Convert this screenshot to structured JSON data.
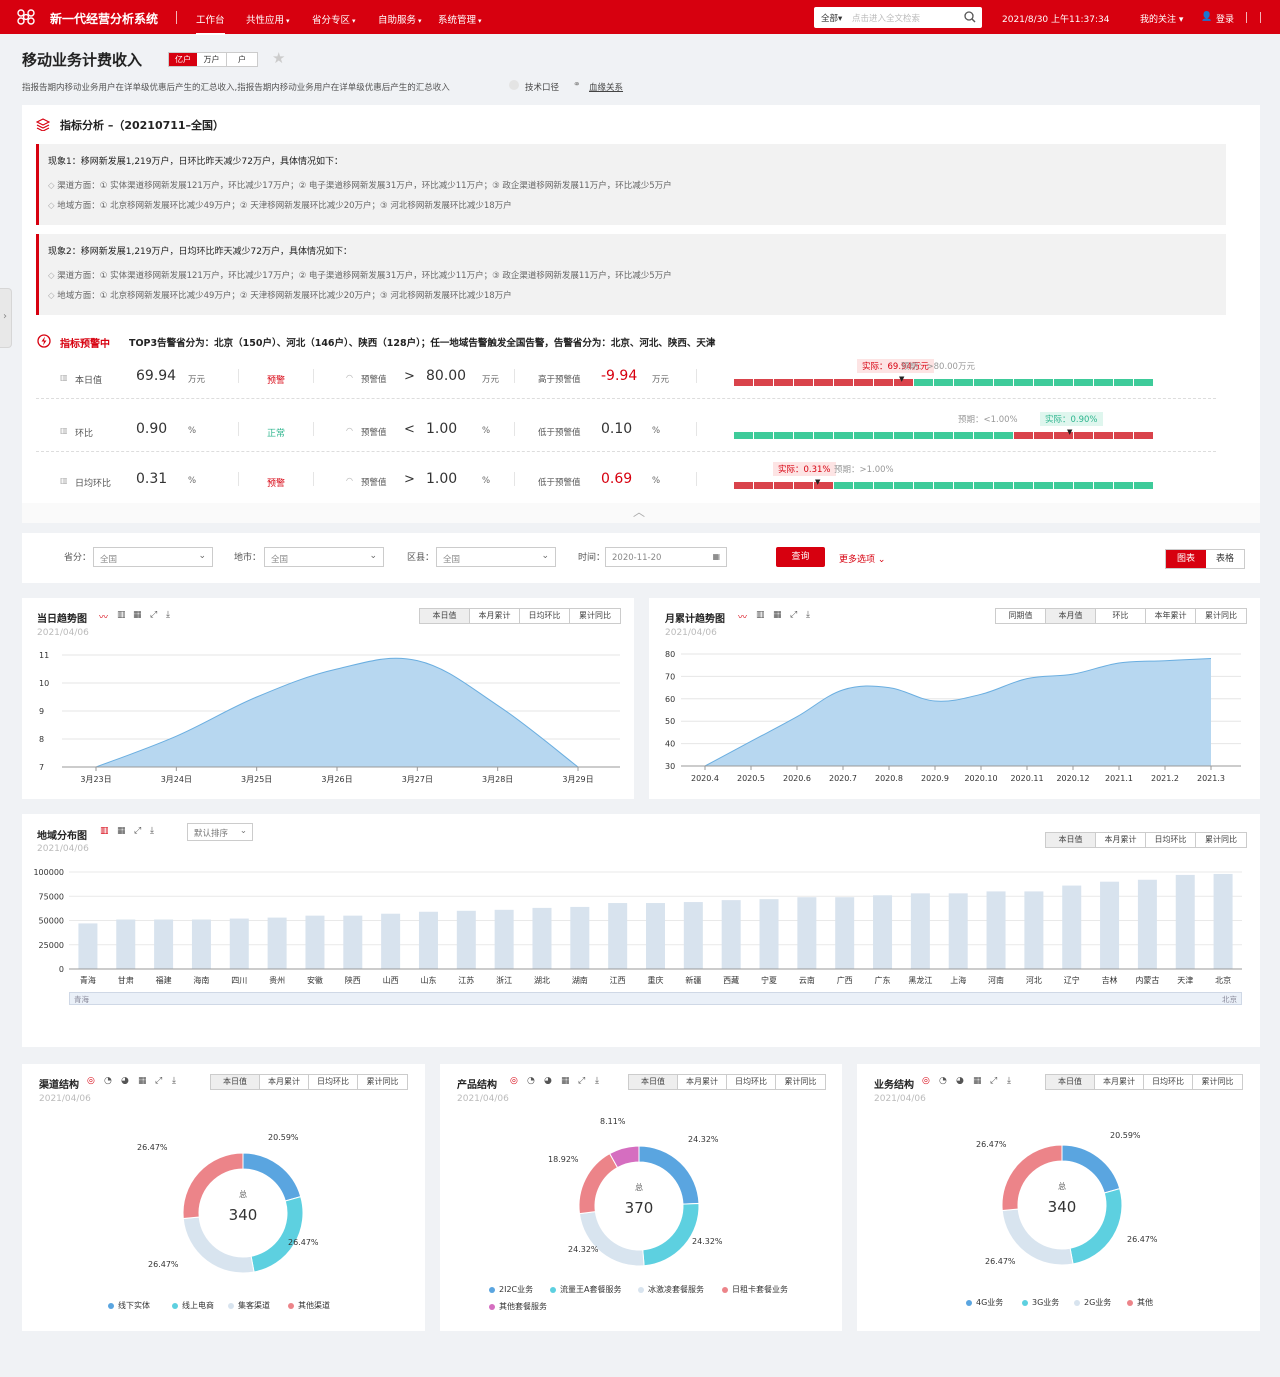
{
  "topbar": {
    "brand": "新一代经营分析系统",
    "nav": [
      {
        "label": "工作台",
        "active": true
      },
      {
        "label": "共性应用"
      },
      {
        "label": "省分专区"
      },
      {
        "label": "自助服务"
      },
      {
        "label": "系统管理"
      }
    ],
    "search_scope": "全部",
    "search_placeholder": "点击进入全文检索",
    "datetime": "2021/8/30 上午11:37:34",
    "my_follow": "我的关注",
    "login": "登录"
  },
  "page": {
    "title": "移动业务计费收入",
    "units": [
      "亿户",
      "万户",
      "户"
    ],
    "desc": "指报告期内移动业务用户在详单级优惠后产生的汇总收入,指报告期内移动业务用户在详单级优惠后产生的汇总收入",
    "tech": "技术口径",
    "lineage": "血缘关系"
  },
  "analysis": {
    "title": "指标分析 –（20210711–全国）",
    "phenomena": [
      {
        "title": "现象1：移网新发展1,219万户，日环比昨天减少72万户，具体情况如下：",
        "lines": [
          "渠道方面：① 实体渠道移网新发展121万户，环比减少17万户；② 电子渠道移网新发展31万户，环比减少11万户；③ 政企渠道移网新发展11万户，环比减少5万户",
          "地域方面：① 北京移网新发展环比减少49万户；② 天津移网新发展环比减少20万户；③ 河北移网新发展环比减少18万户"
        ]
      },
      {
        "title": "现象2：移网新发展1,219万户，日均环比昨天减少72万户，具体情况如下：",
        "lines": [
          "渠道方面：① 实体渠道移网新发展121万户，环比减少17万户；② 电子渠道移网新发展31万户，环比减少11万户；③ 政企渠道移网新发展11万户，环比减少5万户",
          "地域方面：① 北京移网新发展环比减少49万户；② 天津移网新发展环比减少20万户；③ 河北移网新发展环比减少18万户"
        ]
      }
    ],
    "warning": {
      "label": "指标预警中",
      "text": "TOP3告警省分为：北京（150户）、河北（146户）、陕西（128户）；任一地域告警触发全国告警，告警省分为：北京、河北、陕西、天津",
      "rows": [
        {
          "name": "本日值",
          "value": "69.94",
          "unit": "万元",
          "status": "预警",
          "status_color": "red",
          "th_label": "预警值",
          "op": ">",
          "th": "80.00",
          "th_unit": "万元",
          "diff_label": "高于预警值",
          "diff": "-9.94",
          "diff_unit": "万元",
          "diff_color": "red",
          "actual": "实际：69.94万元",
          "expect": "预期：>80.00万元",
          "red_segments": 9,
          "marker": 0.4,
          "red_first": true
        },
        {
          "name": "环比",
          "value": "0.90",
          "unit": "%",
          "status": "正常",
          "status_color": "green",
          "th_label": "预警值",
          "op": "<",
          "th": "1.00",
          "th_unit": "%",
          "diff_label": "低于预警值",
          "diff": "0.10",
          "diff_unit": "%",
          "diff_color": "dark",
          "actual": "实际：0.90%",
          "expect": "预期：<1.00%",
          "red_segments": 7,
          "marker": 0.8,
          "red_first": false
        },
        {
          "name": "日均环比",
          "value": "0.31",
          "unit": "%",
          "status": "预警",
          "status_color": "red",
          "th_label": "预警值",
          "op": ">",
          "th": "1.00",
          "th_unit": "%",
          "diff_label": "低于预警值",
          "diff": "0.69",
          "diff_unit": "%",
          "diff_color": "red",
          "actual": "实际：0.31%",
          "expect": "预期：>1.00%",
          "red_segments": 5,
          "marker": 0.2,
          "red_first": true
        }
      ]
    }
  },
  "filters": {
    "province_label": "省分：",
    "province": "全国",
    "city_label": "地市：",
    "city": "全国",
    "county_label": "区县：",
    "county": "全国",
    "time_label": "时间：",
    "time": "2020-11-20",
    "query": "查询",
    "more": "更多选项",
    "view_chart": "图表",
    "view_table": "表格"
  },
  "daily": {
    "title": "当日趋势图",
    "date": "2021/04/06",
    "tabs": [
      "本日值",
      "本月累计",
      "日均环比",
      "累计同比"
    ]
  },
  "monthly": {
    "title": "月累计趋势图",
    "date": "2021/04/06",
    "tabs": [
      "同期值",
      "本月值",
      "环比",
      "本年累计",
      "累计同比"
    ]
  },
  "region": {
    "title": "地域分布图",
    "date": "2021/04/06",
    "sort": "默认排序",
    "tabs": [
      "本日值",
      "本月累计",
      "日均环比",
      "累计同比"
    ],
    "slider_left": "青海",
    "slider_right": "北京"
  },
  "donuts": [
    {
      "title": "渠道结构",
      "date": "2021/04/06",
      "total_label": "总",
      "total": "340",
      "tabs": [
        "本日值",
        "本月累计",
        "日均环比",
        "累计同比"
      ],
      "legend": [
        "线下实体",
        "线上电商",
        "集客渠道",
        "其他渠道"
      ]
    },
    {
      "title": "产品结构",
      "date": "2021/04/06",
      "total_label": "总",
      "total": "370",
      "tabs": [
        "本日值",
        "本月累计",
        "日均环比",
        "累计同比"
      ],
      "legend": [
        "2I2C业务",
        "流量王A套餐服务",
        "冰激凌套餐服务",
        "日租卡套餐业务",
        "其他套餐服务"
      ]
    },
    {
      "title": "业务结构",
      "date": "2021/04/06",
      "total_label": "总",
      "total": "340",
      "tabs": [
        "本日值",
        "本月累计",
        "日均环比",
        "累计同比"
      ],
      "legend": [
        "4G业务",
        "3G业务",
        "2G业务",
        "其他"
      ]
    }
  ],
  "colors": {
    "brand": "#d7000f",
    "blue": "#5aa5e0",
    "cyan": "#5dd0e0",
    "light": "#d8e4ef",
    "pink": "#ec8489",
    "purple": "#d56ec0",
    "area": "#b7d7f0",
    "green": "#3ecb9a"
  },
  "chart_data": [
    {
      "type": "area",
      "title": "当日趋势图",
      "categories": [
        "3月23日",
        "3月24日",
        "3月25日",
        "3月26日",
        "3月27日",
        "3月28日",
        "3月29日"
      ],
      "values": [
        7,
        8.1,
        9.5,
        10.5,
        10.8,
        9.2,
        7
      ],
      "yticks": [
        7,
        8,
        9,
        10,
        11
      ],
      "ylim": [
        7,
        11
      ]
    },
    {
      "type": "area",
      "title": "月累计趋势图",
      "categories": [
        "2020.4",
        "2020.5",
        "2020.6",
        "2020.7",
        "2020.8",
        "2020.9",
        "2020.10",
        "2020.11",
        "2020.12",
        "2021.1",
        "2021.2",
        "2021.3"
      ],
      "values": [
        30,
        41,
        52,
        64,
        65,
        59,
        62,
        69,
        71,
        76,
        77,
        78
      ],
      "yticks": [
        30,
        40,
        50,
        60,
        70,
        80
      ],
      "ylim": [
        30,
        80
      ]
    },
    {
      "type": "bar",
      "title": "地域分布图",
      "categories": [
        "青海",
        "甘肃",
        "福建",
        "海南",
        "四川",
        "贵州",
        "安徽",
        "陕西",
        "山西",
        "山东",
        "江苏",
        "浙江",
        "湖北",
        "湖南",
        "江西",
        "重庆",
        "新疆",
        "西藏",
        "宁夏",
        "云南",
        "广西",
        "广东",
        "黑龙江",
        "上海",
        "河南",
        "河北",
        "辽宁",
        "吉林",
        "内蒙古",
        "天津",
        "北京"
      ],
      "values": [
        47000,
        51000,
        51000,
        51000,
        52000,
        53000,
        55000,
        55000,
        57000,
        59000,
        60000,
        61000,
        63000,
        64000,
        68000,
        68000,
        69000,
        71000,
        72000,
        74000,
        74000,
        76000,
        78000,
        78000,
        80000,
        80000,
        86000,
        90000,
        92000,
        97000,
        98000
      ],
      "yticks": [
        0,
        25000,
        50000,
        75000,
        100000
      ],
      "ylim": [
        0,
        100000
      ]
    },
    {
      "type": "pie",
      "title": "渠道结构",
      "labels": [
        "线下实体",
        "线上电商",
        "集客渠道",
        "其他渠道"
      ],
      "values": [
        20.59,
        26.47,
        26.47,
        26.47
      ],
      "value_labels": [
        "20.59%",
        "26.47%",
        "26.47%",
        "26.47%"
      ]
    },
    {
      "type": "pie",
      "title": "产品结构",
      "labels": [
        "2I2C业务",
        "流量王A套餐服务",
        "冰激凌套餐服务",
        "日租卡套餐业务",
        "其他套餐服务"
      ],
      "values": [
        24.32,
        24.32,
        24.32,
        18.92,
        8.11
      ],
      "value_labels": [
        "24.32%",
        "24.32%",
        "24.32%",
        "18.92%",
        "8.11%"
      ]
    },
    {
      "type": "pie",
      "title": "业务结构",
      "labels": [
        "4G业务",
        "3G业务",
        "2G业务",
        "其他"
      ],
      "values": [
        20.59,
        26.47,
        26.47,
        26.47
      ],
      "value_labels": [
        "20.59%",
        "26.47%",
        "26.47%",
        "26.47%"
      ]
    }
  ]
}
